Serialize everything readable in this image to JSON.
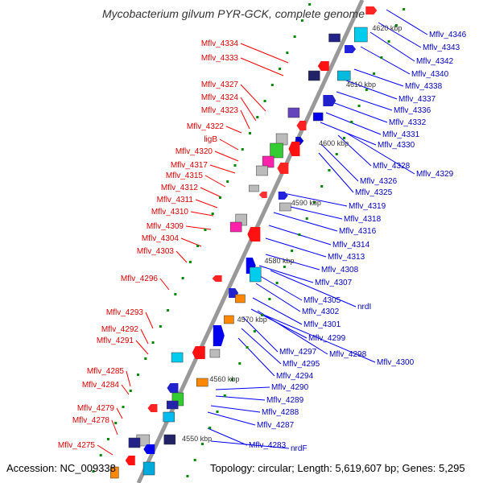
{
  "title": "Mycobacterium gilvum PYR-GCK, complete genome",
  "footer": {
    "accession": "Accession: NC_009338",
    "topology": "Topology: circular; Length: 5,619,607 bp; Genes: 5,295"
  },
  "colors": {
    "left_strand": "#ff0000",
    "right_strand": "#0000ff",
    "left_label": "#dd0000",
    "right_label": "#0000bb",
    "axis": "#999999",
    "dot": "#008800"
  },
  "scale_labels": [
    "4620 kbp",
    "4610 kbp",
    "4600 kbp",
    "4590 kbp",
    "4580 kbp",
    "4570 kbp",
    "4560 kbp",
    "4550 kbp"
  ],
  "left_genes": [
    "Mflv_4334",
    "Mflv_4333",
    "Mflv_4327",
    "Mflv_4324",
    "Mflv_4323",
    "Mflv_4322",
    "ligB",
    "Mflv_4320",
    "Mflv_4317",
    "Mflv_4315",
    "Mflv_4312",
    "Mflv_4311",
    "Mflv_4310",
    "Mflv_4309",
    "Mflv_4304",
    "Mflv_4303",
    "Mflv_4296",
    "Mflv_4293",
    "Mflv_4292",
    "Mflv_4291",
    "Mflv_4285",
    "Mflv_4284",
    "Mflv_4279",
    "Mflv_4278",
    "Mflv_4275"
  ],
  "right_genes": [
    "Mflv_4346",
    "Mflv_4343",
    "Mflv_4342",
    "Mflv_4340",
    "Mflv_4338",
    "Mflv_4337",
    "Mflv_4336",
    "Mflv_4332",
    "Mflv_4331",
    "Mflv_4330",
    "Mflv_4328",
    "Mflv_4329",
    "Mflv_4326",
    "Mflv_4325",
    "Mflv_4319",
    "Mflv_4318",
    "Mflv_4316",
    "Mflv_4314",
    "Mflv_4313",
    "Mflv_4308",
    "Mflv_4307",
    "Mflv_4305",
    "nrdI",
    "Mflv_4302",
    "Mflv_4301",
    "Mflv_4299",
    "Mflv_4297",
    "Mflv_4298",
    "Mflv_4295",
    "Mflv_4300",
    "Mflv_4294",
    "Mflv_4290",
    "Mflv_4289",
    "Mflv_4288",
    "Mflv_4287",
    "Mflv_4283",
    "nrdF"
  ]
}
